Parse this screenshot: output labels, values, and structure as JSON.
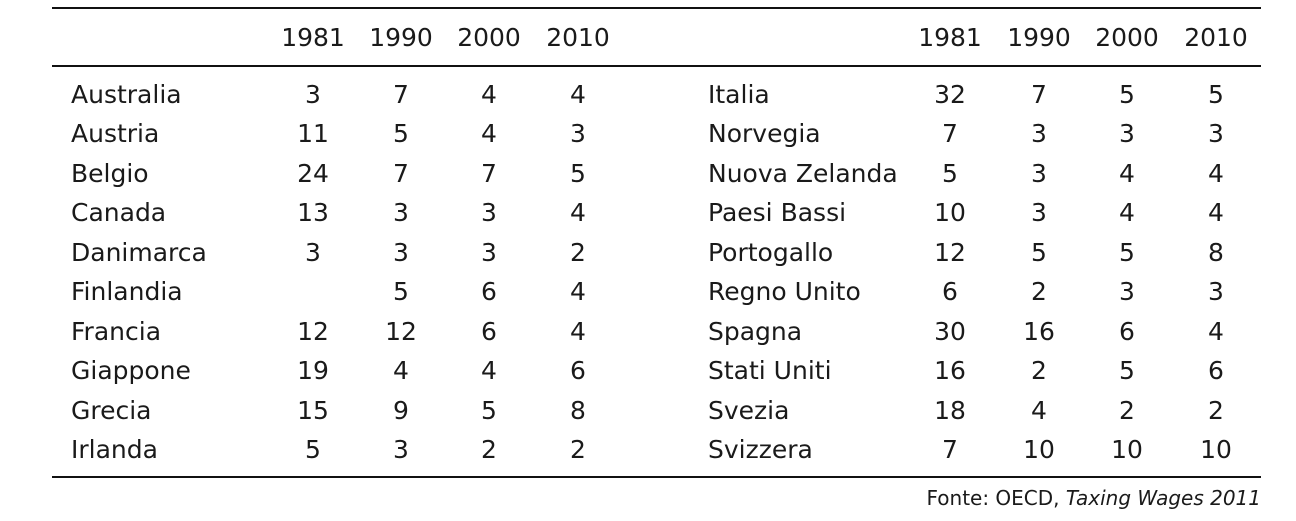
{
  "table": {
    "header_years": [
      "1981",
      "1990",
      "2000",
      "2010"
    ],
    "left_rows": [
      {
        "country": "Australia",
        "values": [
          "3",
          "7",
          "4",
          "4"
        ]
      },
      {
        "country": "Austria",
        "values": [
          "11",
          "5",
          "4",
          "3"
        ]
      },
      {
        "country": "Belgio",
        "values": [
          "24",
          "7",
          "7",
          "5"
        ]
      },
      {
        "country": "Canada",
        "values": [
          "13",
          "3",
          "3",
          "4"
        ]
      },
      {
        "country": "Danimarca",
        "values": [
          "3",
          "3",
          "3",
          "2"
        ]
      },
      {
        "country": "Finlandia",
        "values": [
          "",
          "5",
          "6",
          "4"
        ]
      },
      {
        "country": "Francia",
        "values": [
          "12",
          "12",
          "6",
          "4"
        ]
      },
      {
        "country": "Giappone",
        "values": [
          "19",
          "4",
          "4",
          "6"
        ]
      },
      {
        "country": "Grecia",
        "values": [
          "15",
          "9",
          "5",
          "8"
        ]
      },
      {
        "country": "Irlanda",
        "values": [
          "5",
          "3",
          "2",
          "2"
        ]
      }
    ],
    "right_rows": [
      {
        "country": "Italia",
        "values": [
          "32",
          "7",
          "5",
          "5"
        ]
      },
      {
        "country": "Norvegia",
        "values": [
          "7",
          "3",
          "3",
          "3"
        ]
      },
      {
        "country": "Nuova Zelanda",
        "values": [
          "5",
          "3",
          "4",
          "4"
        ]
      },
      {
        "country": "Paesi Bassi",
        "values": [
          "10",
          "3",
          "4",
          "4"
        ]
      },
      {
        "country": "Portogallo",
        "values": [
          "12",
          "5",
          "5",
          "8"
        ]
      },
      {
        "country": "Regno Unito",
        "values": [
          "6",
          "2",
          "3",
          "3"
        ]
      },
      {
        "country": "Spagna",
        "values": [
          "30",
          "16",
          "6",
          "4"
        ]
      },
      {
        "country": "Stati Uniti",
        "values": [
          "16",
          "2",
          "5",
          "6"
        ]
      },
      {
        "country": "Svezia",
        "values": [
          "18",
          "4",
          "2",
          "2"
        ]
      },
      {
        "country": "Svizzera",
        "values": [
          "7",
          "10",
          "10",
          "10"
        ]
      }
    ]
  },
  "source": {
    "prefix": "Fonte: OECD, ",
    "publication": "Taxing Wages 2011"
  }
}
